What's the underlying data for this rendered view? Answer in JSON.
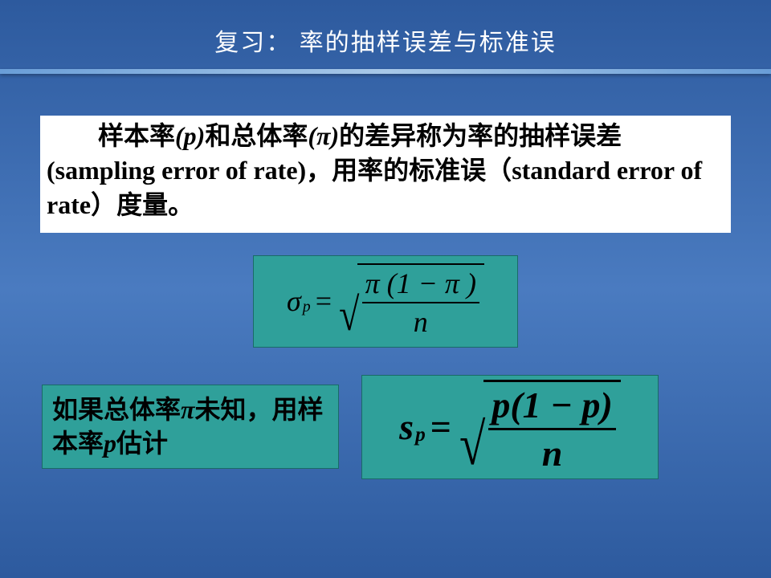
{
  "title": "复习：  率的抽样误差与标准误",
  "paragraph": {
    "part1": "样本率",
    "p_sym": "(p)",
    "part2": "和总体率",
    "pi_sym": "(π)",
    "part3": "的差异称为率的抽样误差",
    "eng1": "(sampling error of rate)",
    "part4": "，用率的标准误（",
    "eng2": "standard error of rate",
    "part5": "）度量。"
  },
  "formula1": {
    "lhs_base": "σ",
    "lhs_sub": "p",
    "eq": "=",
    "num": "π (1 − π )",
    "den": "n"
  },
  "note": {
    "line1a": "如果总体率",
    "pi": "π",
    "line1b": "未知，用样本率",
    "p": "p",
    "line1c": "估计"
  },
  "formula2": {
    "lhs_base": "s",
    "lhs_sub": "p",
    "eq": "=",
    "num": "p(1 − p)",
    "den": "n"
  },
  "colors": {
    "bg_gradient_top": "#2d5a9e",
    "bg_gradient_mid": "#4a7bc0",
    "teal": "#2fa09a",
    "white": "#ffffff",
    "text": "#000000"
  }
}
